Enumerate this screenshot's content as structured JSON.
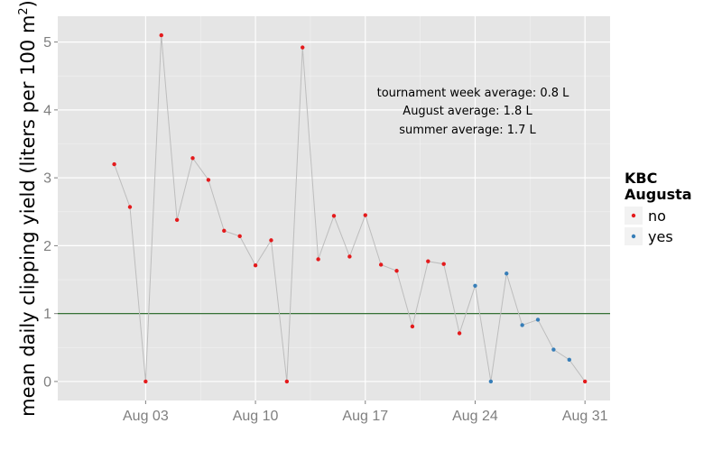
{
  "chart_data": {
    "type": "line",
    "ylabel": "mean daily clipping yield (liters per 100 m",
    "ylabel_sup": "2",
    "ylabel_close": ")",
    "ylim": [
      -0.28,
      5.38
    ],
    "yticks": [
      0,
      1,
      2,
      3,
      4,
      5
    ],
    "xlim": [
      "2014-07-30",
      "2014-08-31"
    ],
    "xticks": [
      {
        "date": "2014-08-03",
        "label": "Aug 03"
      },
      {
        "date": "2014-08-10",
        "label": "Aug 10"
      },
      {
        "date": "2014-08-17",
        "label": "Aug 17"
      },
      {
        "date": "2014-08-24",
        "label": "Aug 24"
      },
      {
        "date": "2014-08-31",
        "label": "Aug 31"
      }
    ],
    "reference_line": {
      "y": 1.0,
      "color": "#1a5e1a"
    },
    "annotations": [
      "tournament week average: 0.8 L",
      "August average: 1.8 L",
      "summer average: 1.7 L"
    ],
    "legend": {
      "title_line1": "KBC",
      "title_line2": "Augusta",
      "placement": "right",
      "entries": [
        {
          "label": "no",
          "color": "#e41a1c"
        },
        {
          "label": "yes",
          "color": "#377eb8"
        }
      ]
    },
    "line_color": "#bdbdbd",
    "grid": true,
    "points": [
      {
        "x": "2014-08-01",
        "y": 3.2,
        "kbc": "no"
      },
      {
        "x": "2014-08-02",
        "y": 2.57,
        "kbc": "no"
      },
      {
        "x": "2014-08-03",
        "y": 0.0,
        "kbc": "no"
      },
      {
        "x": "2014-08-04",
        "y": 5.1,
        "kbc": "no"
      },
      {
        "x": "2014-08-05",
        "y": 2.38,
        "kbc": "no"
      },
      {
        "x": "2014-08-06",
        "y": 3.29,
        "kbc": "no"
      },
      {
        "x": "2014-08-07",
        "y": 2.97,
        "kbc": "no"
      },
      {
        "x": "2014-08-08",
        "y": 2.22,
        "kbc": "no"
      },
      {
        "x": "2014-08-09",
        "y": 2.14,
        "kbc": "no"
      },
      {
        "x": "2014-08-10",
        "y": 1.71,
        "kbc": "no"
      },
      {
        "x": "2014-08-11",
        "y": 2.08,
        "kbc": "no"
      },
      {
        "x": "2014-08-12",
        "y": 0.0,
        "kbc": "no"
      },
      {
        "x": "2014-08-13",
        "y": 4.92,
        "kbc": "no"
      },
      {
        "x": "2014-08-14",
        "y": 1.8,
        "kbc": "no"
      },
      {
        "x": "2014-08-15",
        "y": 2.44,
        "kbc": "no"
      },
      {
        "x": "2014-08-16",
        "y": 1.84,
        "kbc": "no"
      },
      {
        "x": "2014-08-17",
        "y": 2.45,
        "kbc": "no"
      },
      {
        "x": "2014-08-18",
        "y": 1.72,
        "kbc": "no"
      },
      {
        "x": "2014-08-19",
        "y": 1.63,
        "kbc": "no"
      },
      {
        "x": "2014-08-20",
        "y": 0.81,
        "kbc": "no"
      },
      {
        "x": "2014-08-21",
        "y": 1.77,
        "kbc": "no"
      },
      {
        "x": "2014-08-22",
        "y": 1.73,
        "kbc": "no"
      },
      {
        "x": "2014-08-23",
        "y": 0.71,
        "kbc": "no"
      },
      {
        "x": "2014-08-24",
        "y": 1.41,
        "kbc": "yes"
      },
      {
        "x": "2014-08-25",
        "y": 0.0,
        "kbc": "yes"
      },
      {
        "x": "2014-08-26",
        "y": 1.59,
        "kbc": "yes"
      },
      {
        "x": "2014-08-27",
        "y": 0.83,
        "kbc": "yes"
      },
      {
        "x": "2014-08-28",
        "y": 0.91,
        "kbc": "yes"
      },
      {
        "x": "2014-08-29",
        "y": 0.47,
        "kbc": "yes"
      },
      {
        "x": "2014-08-30",
        "y": 0.32,
        "kbc": "yes"
      },
      {
        "x": "2014-08-31",
        "y": 0.0,
        "kbc": "no"
      }
    ]
  }
}
